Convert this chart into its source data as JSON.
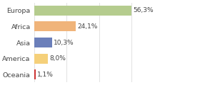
{
  "categories": [
    "Europa",
    "Africa",
    "Asia",
    "America",
    "Oceania"
  ],
  "values": [
    56.3,
    24.1,
    10.3,
    8.0,
    1.1
  ],
  "labels": [
    "56,3%",
    "24,1%",
    "10,3%",
    "8,0%",
    "1,1%"
  ],
  "colors": [
    "#b5cc8e",
    "#f0b47a",
    "#6b7fba",
    "#f5d07a",
    "#cc3333"
  ],
  "background_color": "#ffffff",
  "xlim": [
    0,
    75
  ],
  "bar_height": 0.62,
  "label_fontsize": 6.5,
  "tick_fontsize": 6.8
}
